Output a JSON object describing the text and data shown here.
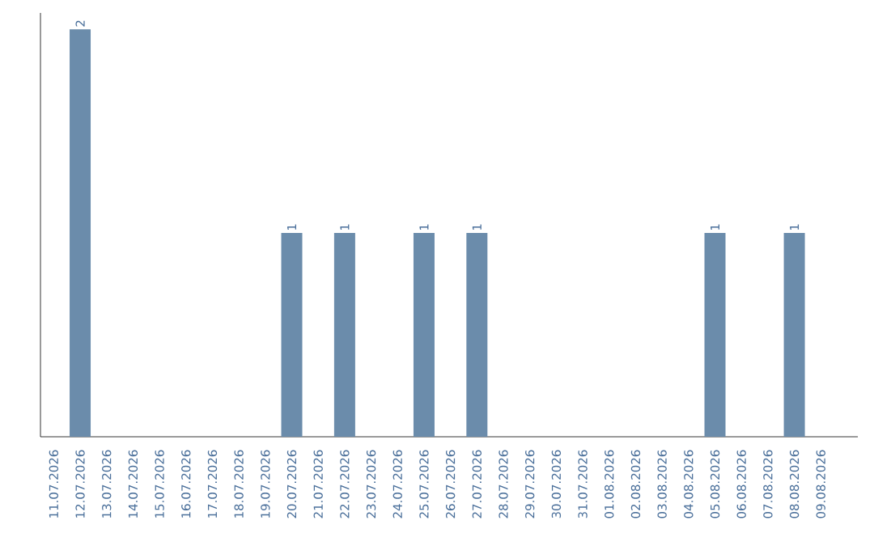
{
  "chart_data": {
    "type": "bar",
    "categories": [
      "11.07.2026",
      "12.07.2026",
      "13.07.2026",
      "14.07.2026",
      "15.07.2026",
      "16.07.2026",
      "17.07.2026",
      "18.07.2026",
      "19.07.2026",
      "20.07.2026",
      "21.07.2026",
      "22.07.2026",
      "23.07.2026",
      "24.07.2026",
      "25.07.2026",
      "26.07.2026",
      "27.07.2026",
      "28.07.2026",
      "29.07.2026",
      "30.07.2026",
      "31.07.2026",
      "01.08.2026",
      "02.08.2026",
      "03.08.2026",
      "04.08.2026",
      "05.08.2026",
      "06.08.2026",
      "07.08.2026",
      "08.08.2026",
      "09.08.2026"
    ],
    "values": [
      0,
      2,
      0,
      0,
      0,
      0,
      0,
      0,
      0,
      1,
      0,
      1,
      0,
      0,
      1,
      0,
      1,
      0,
      0,
      0,
      0,
      0,
      0,
      0,
      0,
      1,
      0,
      0,
      1,
      0
    ],
    "value_labels": [
      null,
      "2",
      null,
      null,
      null,
      null,
      null,
      null,
      null,
      "1",
      null,
      "1",
      null,
      null,
      "1",
      null,
      "1",
      null,
      null,
      null,
      null,
      null,
      null,
      null,
      null,
      "1",
      null,
      null,
      "1",
      null
    ],
    "color": "#6b8cab",
    "tick_labels": "x"
  }
}
